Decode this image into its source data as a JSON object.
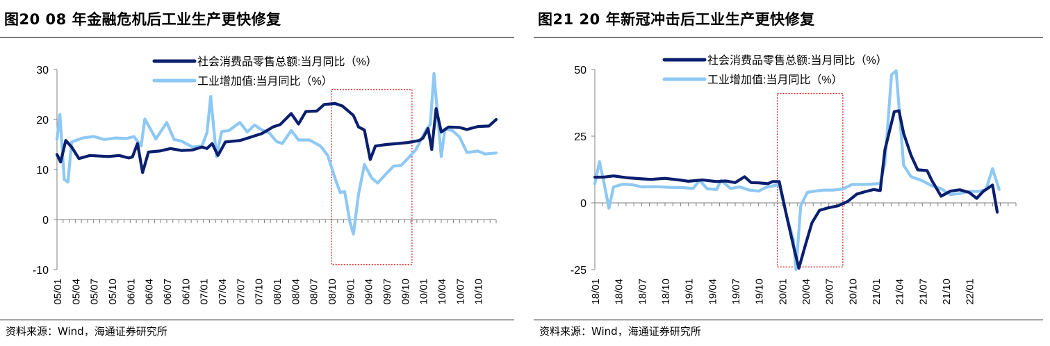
{
  "charts": [
    {
      "title": "图20 08 年金融危机后工业生产更快修复",
      "source": "资料来源：Wind，海通证券研究所",
      "chart_data": {
        "type": "line",
        "title": "图20 08 年金融危机后工业生产更快修复",
        "xlabel": "",
        "ylabel": "",
        "ylim": [
          -10,
          30
        ],
        "yticks": [
          -10,
          0,
          10,
          20,
          30
        ],
        "xlim": [
          2005.0,
          2011.0
        ],
        "xticks": [
          "05/01",
          "05/04",
          "05/07",
          "05/10",
          "06/01",
          "06/04",
          "06/07",
          "06/10",
          "07/01",
          "07/04",
          "07/07",
          "07/10",
          "08/01",
          "08/04",
          "08/07",
          "08/10",
          "09/01",
          "09/04",
          "09/07",
          "09/10",
          "10/01",
          "10/04",
          "10/07",
          "10/10"
        ],
        "legend": "top-center",
        "highlight_box": {
          "x": [
            2008.75,
            2009.85
          ],
          "y": [
            -9,
            26
          ]
        },
        "series": [
          {
            "name": "社会消费品零售总额:当月同比（%）",
            "color": "#0a1f6e",
            "points": [
              [
                2005.0,
                13
              ],
              [
                2005.05,
                11.5
              ],
              [
                2005.12,
                15.8
              ],
              [
                2005.2,
                14.5
              ],
              [
                2005.3,
                12.2
              ],
              [
                2005.45,
                12.8
              ],
              [
                2005.7,
                12.6
              ],
              [
                2005.85,
                12.8
              ],
              [
                2005.98,
                12.3
              ],
              [
                2006.03,
                12.5
              ],
              [
                2006.1,
                15.2
              ],
              [
                2006.17,
                9.4
              ],
              [
                2006.25,
                13.5
              ],
              [
                2006.4,
                13.7
              ],
              [
                2006.55,
                14.2
              ],
              [
                2006.7,
                13.8
              ],
              [
                2006.85,
                13.9
              ],
              [
                2006.98,
                14.5
              ],
              [
                2007.05,
                14.2
              ],
              [
                2007.12,
                15.2
              ],
              [
                2007.2,
                12.8
              ],
              [
                2007.3,
                15.5
              ],
              [
                2007.5,
                15.8
              ],
              [
                2007.65,
                16.5
              ],
              [
                2007.8,
                17.2
              ],
              [
                2007.95,
                18.5
              ],
              [
                2008.05,
                19.0
              ],
              [
                2008.2,
                21.2
              ],
              [
                2008.3,
                19.1
              ],
              [
                2008.4,
                21.6
              ],
              [
                2008.55,
                21.7
              ],
              [
                2008.65,
                23.0
              ],
              [
                2008.8,
                23.2
              ],
              [
                2008.9,
                22.7
              ],
              [
                2009.05,
                20.8
              ],
              [
                2009.12,
                18.5
              ],
              [
                2009.2,
                17.9
              ],
              [
                2009.28,
                12.0
              ],
              [
                2009.35,
                14.7
              ],
              [
                2009.5,
                15.0
              ],
              [
                2009.65,
                15.2
              ],
              [
                2009.8,
                15.4
              ],
              [
                2009.95,
                15.8
              ],
              [
                2010.0,
                16.3
              ],
              [
                2010.07,
                18.2
              ],
              [
                2010.12,
                14.0
              ],
              [
                2010.18,
                22.2
              ],
              [
                2010.25,
                17.5
              ],
              [
                2010.35,
                18.5
              ],
              [
                2010.5,
                18.4
              ],
              [
                2010.6,
                18.0
              ],
              [
                2010.75,
                18.6
              ],
              [
                2010.9,
                18.7
              ],
              [
                2011.0,
                20.0
              ]
            ]
          },
          {
            "name": "工业增加值:当月同比（%）",
            "color": "#8ec8f4",
            "points": [
              [
                2005.0,
                16
              ],
              [
                2005.04,
                21
              ],
              [
                2005.1,
                8
              ],
              [
                2005.15,
                7.5
              ],
              [
                2005.2,
                15.5
              ],
              [
                2005.35,
                16.3
              ],
              [
                2005.5,
                16.6
              ],
              [
                2005.65,
                16.0
              ],
              [
                2005.8,
                16.3
              ],
              [
                2005.95,
                16.2
              ],
              [
                2006.05,
                16.6
              ],
              [
                2006.15,
                14.7
              ],
              [
                2006.2,
                20.1
              ],
              [
                2006.3,
                17.5
              ],
              [
                2006.35,
                16.1
              ],
              [
                2006.5,
                19.4
              ],
              [
                2006.6,
                16.0
              ],
              [
                2006.7,
                15.7
              ],
              [
                2006.85,
                14.5
              ],
              [
                2006.98,
                14.7
              ],
              [
                2007.05,
                17.4
              ],
              [
                2007.1,
                24.6
              ],
              [
                2007.18,
                12.6
              ],
              [
                2007.25,
                17.6
              ],
              [
                2007.35,
                17.8
              ],
              [
                2007.5,
                19.4
              ],
              [
                2007.6,
                17.5
              ],
              [
                2007.7,
                18.9
              ],
              [
                2007.8,
                17.9
              ],
              [
                2007.9,
                17.3
              ],
              [
                2008.0,
                15.6
              ],
              [
                2008.08,
                15.2
              ],
              [
                2008.2,
                17.8
              ],
              [
                2008.3,
                15.9
              ],
              [
                2008.45,
                15.9
              ],
              [
                2008.6,
                14.7
              ],
              [
                2008.7,
                12.8
              ],
              [
                2008.8,
                8.2
              ],
              [
                2008.87,
                5.4
              ],
              [
                2008.93,
                5.6
              ],
              [
                2009.0,
                -0.3
              ],
              [
                2009.05,
                -2.9
              ],
              [
                2009.12,
                5.1
              ],
              [
                2009.2,
                11.0
              ],
              [
                2009.3,
                8.3
              ],
              [
                2009.38,
                7.3
              ],
              [
                2009.5,
                9.2
              ],
              [
                2009.6,
                10.7
              ],
              [
                2009.7,
                10.8
              ],
              [
                2009.8,
                12.3
              ],
              [
                2009.9,
                13.9
              ],
              [
                2009.98,
                16.1
              ],
              [
                2010.05,
                18.1
              ],
              [
                2010.1,
                19.0
              ],
              [
                2010.15,
                29.2
              ],
              [
                2010.25,
                12.6
              ],
              [
                2010.3,
                18.1
              ],
              [
                2010.4,
                17.8
              ],
              [
                2010.5,
                16.5
              ],
              [
                2010.6,
                13.4
              ],
              [
                2010.75,
                13.7
              ],
              [
                2010.85,
                13.1
              ],
              [
                2011.0,
                13.3
              ]
            ]
          }
        ]
      }
    },
    {
      "title": "图21 20 年新冠冲击后工业生产更快修复",
      "source": "资料来源：Wind，海通证券研究所",
      "chart_data": {
        "type": "line",
        "title": "图21 20 年新冠冲击后工业生产更快修复",
        "xlabel": "",
        "ylabel": "",
        "ylim": [
          -25,
          50
        ],
        "yticks": [
          -25,
          0,
          25,
          50
        ],
        "xlim": [
          2018.0,
          2022.5
        ],
        "xticks": [
          "18/01",
          "18/04",
          "18/07",
          "18/10",
          "19/01",
          "19/04",
          "19/07",
          "19/10",
          "20/01",
          "20/04",
          "20/07",
          "20/10",
          "21/01",
          "21/04",
          "21/07",
          "21/10",
          "22/01"
        ],
        "legend": "top-center",
        "highlight_box": {
          "x": [
            2019.95,
            2020.65
          ],
          "y": [
            -24,
            41
          ]
        },
        "series": [
          {
            "name": "社会消费品零售总额:当月同比（%）",
            "color": "#0a1f6e",
            "points": [
              [
                2018.0,
                9.6
              ],
              [
                2018.1,
                9.7
              ],
              [
                2018.2,
                10.1
              ],
              [
                2018.35,
                9.4
              ],
              [
                2018.5,
                9.0
              ],
              [
                2018.6,
                8.8
              ],
              [
                2018.75,
                9.2
              ],
              [
                2018.9,
                8.6
              ],
              [
                2019.0,
                8.1
              ],
              [
                2019.15,
                8.6
              ],
              [
                2019.3,
                8.0
              ],
              [
                2019.4,
                8.2
              ],
              [
                2019.5,
                7.6
              ],
              [
                2019.6,
                9.8
              ],
              [
                2019.67,
                7.6
              ],
              [
                2019.75,
                7.5
              ],
              [
                2019.85,
                7.2
              ],
              [
                2019.9,
                8.0
              ],
              [
                2019.97,
                8.0
              ],
              [
                2020.05,
                -5
              ],
              [
                2020.12,
                -15.8
              ],
              [
                2020.18,
                -24.5
              ],
              [
                2020.25,
                -15.8
              ],
              [
                2020.32,
                -7.5
              ],
              [
                2020.4,
                -2.8
              ],
              [
                2020.5,
                -1.8
              ],
              [
                2020.6,
                -1.1
              ],
              [
                2020.7,
                0.5
              ],
              [
                2020.8,
                3.3
              ],
              [
                2020.9,
                4.3
              ],
              [
                2020.98,
                5.0
              ],
              [
                2021.05,
                4.6
              ],
              [
                2021.1,
                20
              ],
              [
                2021.2,
                34.2
              ],
              [
                2021.25,
                34.5
              ],
              [
                2021.3,
                26
              ],
              [
                2021.38,
                17.7
              ],
              [
                2021.45,
                12.4
              ],
              [
                2021.55,
                12.1
              ],
              [
                2021.6,
                8.5
              ],
              [
                2021.7,
                2.5
              ],
              [
                2021.8,
                4.4
              ],
              [
                2021.9,
                4.9
              ],
              [
                2022.0,
                3.9
              ],
              [
                2022.08,
                1.7
              ],
              [
                2022.15,
                4.3
              ],
              [
                2022.25,
                6.7
              ],
              [
                2022.3,
                -3.5
              ]
            ]
          },
          {
            "name": "工业增加值:当月同比（%）",
            "color": "#8ec8f4",
            "points": [
              [
                2018.0,
                7.2
              ],
              [
                2018.05,
                15.5
              ],
              [
                2018.1,
                7.2
              ],
              [
                2018.15,
                -2
              ],
              [
                2018.2,
                6.0
              ],
              [
                2018.3,
                7.0
              ],
              [
                2018.4,
                6.8
              ],
              [
                2018.5,
                6.0
              ],
              [
                2018.65,
                6.1
              ],
              [
                2018.8,
                5.8
              ],
              [
                2018.95,
                5.7
              ],
              [
                2019.05,
                5.4
              ],
              [
                2019.12,
                8.5
              ],
              [
                2019.2,
                5.3
              ],
              [
                2019.3,
                5.0
              ],
              [
                2019.35,
                8.5
              ],
              [
                2019.45,
                5.4
              ],
              [
                2019.55,
                6.0
              ],
              [
                2019.65,
                4.8
              ],
              [
                2019.75,
                4.4
              ],
              [
                2019.82,
                5.7
              ],
              [
                2019.88,
                6.2
              ],
              [
                2019.97,
                6.9
              ],
              [
                2020.05,
                -5
              ],
              [
                2020.12,
                -13.5
              ],
              [
                2020.15,
                -25
              ],
              [
                2020.2,
                -1.1
              ],
              [
                2020.27,
                3.9
              ],
              [
                2020.35,
                4.4
              ],
              [
                2020.45,
                4.8
              ],
              [
                2020.55,
                4.8
              ],
              [
                2020.65,
                5.2
              ],
              [
                2020.75,
                6.9
              ],
              [
                2020.85,
                6.9
              ],
              [
                2020.95,
                7.0
              ],
              [
                2021.05,
                7.3
              ],
              [
                2021.1,
                15
              ],
              [
                2021.17,
                48
              ],
              [
                2021.22,
                49.5
              ],
              [
                2021.3,
                14.1
              ],
              [
                2021.38,
                9.8
              ],
              [
                2021.5,
                8.3
              ],
              [
                2021.6,
                6.4
              ],
              [
                2021.7,
                5.3
              ],
              [
                2021.8,
                3.1
              ],
              [
                2021.9,
                3.5
              ],
              [
                2022.0,
                4.3
              ],
              [
                2022.1,
                4.3
              ],
              [
                2022.18,
                5.0
              ],
              [
                2022.25,
                12.8
              ],
              [
                2022.32,
                5.0
              ]
            ]
          }
        ]
      }
    }
  ]
}
